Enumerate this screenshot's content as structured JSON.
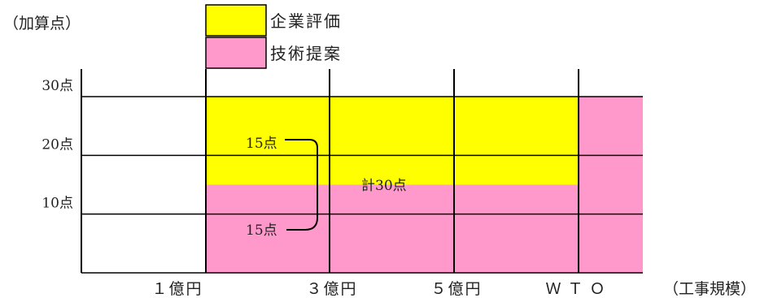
{
  "chart_data": {
    "type": "bar",
    "y_unit_label": "（加算点）",
    "x_unit_label": "（工事規模）",
    "yticks": [
      {
        "value": 10,
        "label": "10点"
      },
      {
        "value": 20,
        "label": "20点"
      },
      {
        "value": 30,
        "label": "30点"
      }
    ],
    "ylim": [
      0,
      30
    ],
    "x_boundaries": [
      {
        "label": "１億円"
      },
      {
        "label": "３億円"
      },
      {
        "label": "５億円"
      },
      {
        "label": "ＷＴＯ"
      }
    ],
    "series": [
      {
        "name": "技術提案",
        "color": "#ff99cc",
        "segments": [
          {
            "from": 0,
            "to": 3,
            "value": 15
          },
          {
            "from": 3,
            "to": 4,
            "value": 30
          }
        ]
      },
      {
        "name": "企業評価",
        "color": "#ffff00",
        "segments": [
          {
            "from": 0,
            "to": 3,
            "value": 15
          }
        ]
      }
    ],
    "annotations": {
      "upper_label": "15点",
      "lower_label": "15点",
      "total_label": "計30点"
    },
    "legend": {
      "position": "top"
    }
  }
}
